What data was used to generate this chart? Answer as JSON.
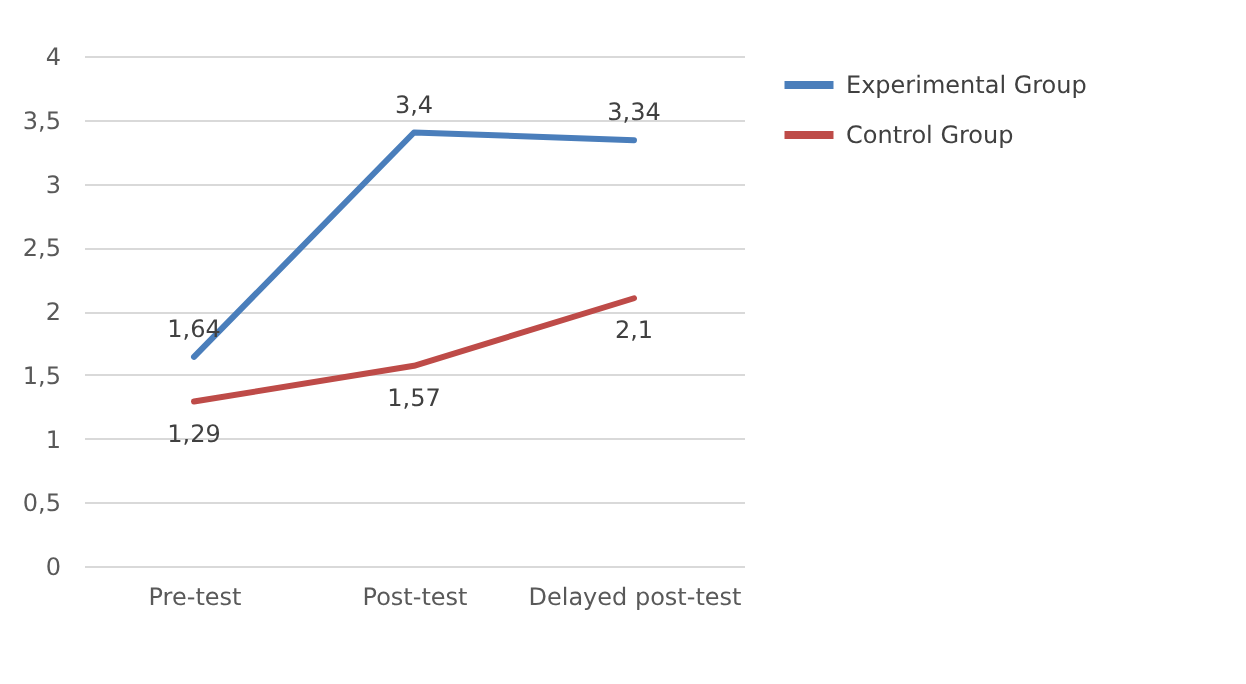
{
  "chart_data": {
    "type": "line",
    "categories": [
      "Pre-test",
      "Post-test",
      "Delayed post-test"
    ],
    "series": [
      {
        "name": "Experimental Group",
        "color": "#4a7ebb",
        "values": [
          1.64,
          3.4,
          3.34
        ],
        "value_labels": [
          "1,64",
          "3,4",
          "3,34"
        ]
      },
      {
        "name": "Control Group",
        "color": "#be4b48",
        "values": [
          1.29,
          1.57,
          2.1
        ],
        "value_labels": [
          "1,29",
          "1,57",
          "2,1"
        ]
      }
    ],
    "ylim": [
      0,
      4
    ],
    "yticks": [
      0,
      {
        "value": 0.5,
        "label": "0,5"
      },
      1,
      {
        "value": 1.5,
        "label": "1,5"
      },
      2,
      {
        "value": 2.5,
        "label": "2,5"
      },
      3,
      {
        "value": 3.5,
        "label": "3,5"
      },
      4
    ],
    "grid": "y",
    "legend": "right",
    "marker": "none",
    "line_style": "solid"
  }
}
